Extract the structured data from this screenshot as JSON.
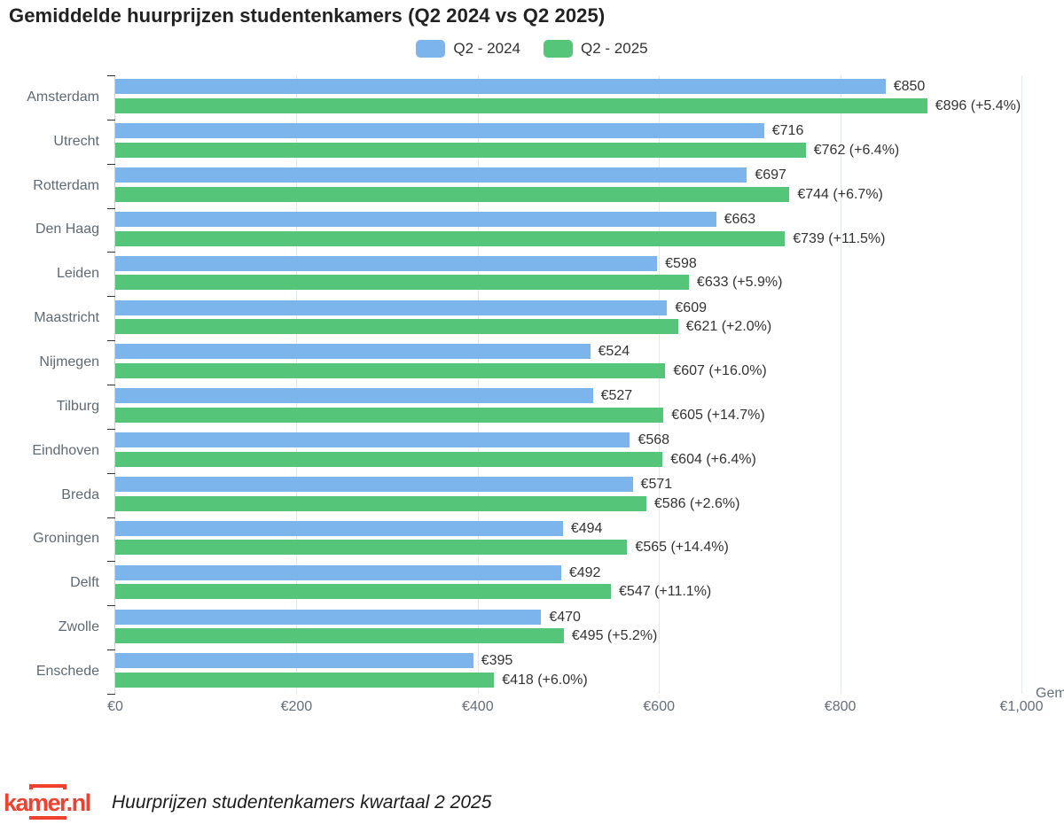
{
  "title": "Gemiddelde huurprijzen studentenkamers (Q2 2024 vs Q2 2025)",
  "colors": {
    "bar_2024": "#7cb5ec",
    "bar_2025": "#55c679",
    "logo_red": "#f0402e",
    "gridline": "#e4e9f1",
    "tick": "#333333"
  },
  "chart_data": {
    "type": "bar",
    "orientation": "horizontal",
    "title": "Gemiddelde huurprijzen studentenkamers (Q2 2024 vs Q2 2025)",
    "categories": [
      "Amsterdam",
      "Utrecht",
      "Rotterdam",
      "Den Haag",
      "Leiden",
      "Maastricht",
      "Nijmegen",
      "Tilburg",
      "Eindhoven",
      "Breda",
      "Groningen",
      "Delft",
      "Zwolle",
      "Enschede"
    ],
    "series": [
      {
        "name": "Q2 - 2024",
        "color": "#7cb5ec",
        "values": [
          850,
          716,
          697,
          663,
          598,
          609,
          524,
          527,
          568,
          571,
          494,
          492,
          470,
          395
        ],
        "labels": [
          "€850",
          "€716",
          "€697",
          "€663",
          "€598",
          "€609",
          "€524",
          "€527",
          "€568",
          "€571",
          "€494",
          "€492",
          "€470",
          "€395"
        ]
      },
      {
        "name": "Q2 - 2025",
        "color": "#55c679",
        "values": [
          896,
          762,
          744,
          739,
          633,
          621,
          607,
          605,
          604,
          586,
          565,
          547,
          495,
          418
        ],
        "labels": [
          "€896 (+5.4%)",
          "€762 (+6.4%)",
          "€744 (+6.7%)",
          "€739 (+11.5%)",
          "€633 (+5.9%)",
          "€621 (+2.0%)",
          "€607 (+16.0%)",
          "€605 (+14.7%)",
          "€604 (+6.4%)",
          "€586 (+2.6%)",
          "€565 (+14.4%)",
          "€547 (+11.1%)",
          "€495 (+5.2%)",
          "€418 (+6.0%)"
        ]
      }
    ],
    "percent_change": [
      "+5.4%",
      "+6.4%",
      "+6.7%",
      "+11.5%",
      "+5.9%",
      "+2.0%",
      "+16.0%",
      "+14.7%",
      "+6.4%",
      "+2.6%",
      "+14.4%",
      "+11.1%",
      "+5.2%",
      "+6.0%"
    ],
    "x_ticks": [
      "€0",
      "€200",
      "€400",
      "€600",
      "€800",
      "€1,000"
    ],
    "x_tick_values": [
      0,
      200,
      400,
      600,
      800,
      1000
    ],
    "xlim": [
      0,
      1000
    ],
    "xlabel_visible_fragment": "Gem",
    "grid": true,
    "legend_position": "top"
  },
  "legend": {
    "items": [
      {
        "label": "Q2 - 2024",
        "color": "#7cb5ec"
      },
      {
        "label": "Q2 - 2025",
        "color": "#55c679"
      }
    ]
  },
  "footer": {
    "logo_text": "kamer.nl",
    "caption": "Huurprijzen studentenkamers kwartaal 2 2025"
  }
}
